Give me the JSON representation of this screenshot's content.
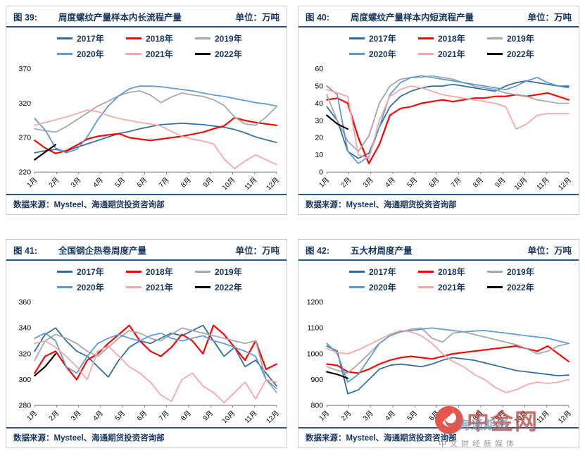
{
  "watermark": {
    "brand": "中金网",
    "overlay": "海通期货",
    "tagline": "中文财经新媒体"
  },
  "chart_data": [
    {
      "type": "line",
      "fig_label": "图 39:",
      "title": "周度螺纹产量样本内长流程产量",
      "unit": "单位：万吨",
      "source": "数据来源：Mysteel、海通期货投资咨询部",
      "xlabel": "",
      "ylabel": "",
      "legend_position": "top",
      "grid": false,
      "ylim": [
        220,
        370
      ],
      "yticks": [
        220,
        270,
        320,
        370
      ],
      "categories": [
        "1月",
        "2月",
        "3月",
        "4月",
        "5月",
        "6月",
        "7月",
        "8月",
        "9月",
        "10月",
        "11月",
        "12月"
      ],
      "series": [
        {
          "name": "2017年",
          "color": "#2E6DA4",
          "width": 1.8,
          "values": [
            248,
            251,
            253,
            250,
            256,
            261,
            266,
            271,
            276,
            279,
            283,
            286,
            289,
            290,
            291,
            290,
            289,
            287,
            285,
            282,
            277,
            271,
            267,
            263
          ]
        },
        {
          "name": "2018年",
          "color": "#FF0000",
          "width": 2.2,
          "values": [
            266,
            255,
            247,
            251,
            259,
            268,
            272,
            274,
            276,
            270,
            268,
            266,
            268,
            270,
            272,
            275,
            278,
            283,
            287,
            299,
            295,
            292,
            290,
            288
          ]
        },
        {
          "name": "2019年",
          "color": "#A6A6A6",
          "width": 1.8,
          "values": [
            283,
            280,
            278,
            286,
            296,
            306,
            316,
            323,
            331,
            336,
            338,
            332,
            321,
            329,
            335,
            332,
            330,
            325,
            317,
            300,
            290,
            288,
            300,
            315
          ]
        },
        {
          "name": "2020年",
          "color": "#5B9BD5",
          "width": 1.8,
          "values": [
            298,
            281,
            255,
            248,
            253,
            271,
            296,
            316,
            331,
            341,
            345,
            345,
            344,
            342,
            340,
            338,
            335,
            332,
            330,
            327,
            324,
            321,
            319,
            316
          ]
        },
        {
          "name": "2021年",
          "color": "#F8A5A5",
          "width": 1.8,
          "values": [
            288,
            292,
            296,
            300,
            305,
            310,
            308,
            302,
            298,
            295,
            292,
            290,
            287,
            279,
            272,
            268,
            265,
            261,
            239,
            225,
            236,
            245,
            238,
            231
          ]
        },
        {
          "name": "2022年",
          "color": "#000000",
          "width": 2.2,
          "values": [
            238,
            249,
            260
          ]
        }
      ]
    },
    {
      "type": "line",
      "fig_label": "图 40:",
      "title": "周度螺纹产量样本内短流程产量",
      "unit": "单位：万吨",
      "source": "数据来源：Mysteel、海通期货投资咨询部",
      "xlabel": "",
      "ylabel": "",
      "legend_position": "top",
      "grid": false,
      "ylim": [
        0,
        60
      ],
      "yticks": [
        0,
        10,
        20,
        30,
        40,
        50,
        60
      ],
      "categories": [
        "1月",
        "2月",
        "3月",
        "4月",
        "5月",
        "6月",
        "7月",
        "8月",
        "9月",
        "10月",
        "11月",
        "12月"
      ],
      "series": [
        {
          "name": "2017年",
          "color": "#2E6DA4",
          "width": 1.8,
          "values": [
            38,
            30,
            12,
            8,
            11,
            26,
            38,
            44,
            47,
            49,
            50,
            50,
            51,
            50,
            49,
            48,
            47,
            50,
            52,
            53,
            52,
            51,
            50,
            50
          ]
        },
        {
          "name": "2018年",
          "color": "#FF0000",
          "width": 2.2,
          "values": [
            42,
            43,
            40,
            20,
            5,
            16,
            33,
            37,
            38,
            40,
            41,
            42,
            41,
            42,
            43,
            43,
            44,
            44,
            45,
            44,
            45,
            46,
            44,
            42
          ]
        },
        {
          "name": "2019年",
          "color": "#A6A6A6",
          "width": 1.8,
          "values": [
            45,
            30,
            18,
            12,
            21,
            40,
            50,
            54,
            55,
            55,
            56,
            55,
            54,
            52,
            50,
            49,
            48,
            46,
            45,
            44,
            42,
            41,
            40,
            40
          ]
        },
        {
          "name": "2020年",
          "color": "#5B9BD5",
          "width": 1.8,
          "values": [
            50,
            45,
            12,
            5,
            9,
            26,
            45,
            52,
            55,
            56,
            55,
            54,
            53,
            52,
            51,
            50,
            49,
            48,
            50,
            53,
            55,
            52,
            50,
            49
          ]
        },
        {
          "name": "2021年",
          "color": "#F8A5A5",
          "width": 1.8,
          "values": [
            48,
            46,
            44,
            10,
            8,
            30,
            44,
            48,
            50,
            49,
            47,
            45,
            44,
            43,
            42,
            41,
            40,
            38,
            25,
            28,
            33,
            34,
            34,
            34
          ]
        },
        {
          "name": "2022年",
          "color": "#000000",
          "width": 2.2,
          "values": [
            33,
            28,
            25
          ]
        }
      ]
    },
    {
      "type": "line",
      "fig_label": "图 41:",
      "title": "全国钢企热卷周度产量",
      "unit": "单位：万吨",
      "source": "数据来源：Mysteel、海通期货投资咨询部",
      "xlabel": "",
      "ylabel": "",
      "legend_position": "top",
      "grid": false,
      "ylim": [
        280,
        360
      ],
      "yticks": [
        280,
        300,
        320,
        340,
        360
      ],
      "categories": [
        "1月",
        "2月",
        "3月",
        "4月",
        "5月",
        "6月",
        "7月",
        "8月",
        "9月",
        "10月",
        "11月",
        "12月"
      ],
      "series": [
        {
          "name": "2017年",
          "color": "#2E6DA4",
          "width": 1.8,
          "values": [
            322,
            335,
            340,
            330,
            322,
            318,
            310,
            302,
            315,
            325,
            330,
            328,
            332,
            336,
            334,
            338,
            342,
            330,
            318,
            325,
            310,
            315,
            305,
            295
          ]
        },
        {
          "name": "2018年",
          "color": "#FF0000",
          "width": 2.2,
          "values": [
            305,
            318,
            322,
            310,
            300,
            315,
            320,
            328,
            335,
            342,
            330,
            322,
            318,
            325,
            335,
            330,
            320,
            342,
            335,
            325,
            315,
            330,
            308,
            312
          ]
        },
        {
          "name": "2019年",
          "color": "#A6A6A6",
          "width": 1.8,
          "values": [
            315,
            330,
            335,
            332,
            328,
            322,
            318,
            325,
            332,
            338,
            336,
            332,
            330,
            335,
            340,
            338,
            336,
            334,
            332,
            330,
            328,
            330,
            300,
            290
          ]
        },
        {
          "name": "2020年",
          "color": "#5B9BD5",
          "width": 1.8,
          "values": [
            332,
            336,
            330,
            310,
            305,
            318,
            328,
            332,
            335,
            332,
            330,
            334,
            336,
            332,
            330,
            332,
            334,
            330,
            328,
            325,
            322,
            318,
            300,
            293
          ]
        },
        {
          "name": "2021年",
          "color": "#F8A5A5",
          "width": 1.8,
          "values": [
            328,
            330,
            325,
            318,
            310,
            300,
            322,
            326,
            318,
            310,
            305,
            298,
            288,
            283,
            300,
            305,
            295,
            290,
            282,
            290,
            298,
            285,
            300,
            298
          ]
        },
        {
          "name": "2022年",
          "color": "#000000",
          "width": 2.2,
          "values": [
            303,
            310,
            320
          ]
        }
      ]
    },
    {
      "type": "line",
      "fig_label": "图 42:",
      "title": "五大材周度产量",
      "unit": "单位：万吨",
      "source": "数据来源：Mysteel、海通期货投资咨询部",
      "xlabel": "",
      "ylabel": "",
      "legend_position": "top",
      "grid": false,
      "ylim": [
        800,
        1200
      ],
      "yticks": [
        800,
        900,
        1000,
        1100,
        1200
      ],
      "categories": [
        "1月",
        "2月",
        "3月",
        "4月",
        "5月",
        "6月",
        "7月",
        "8月",
        "9月",
        "10月",
        "11月",
        "12月"
      ],
      "series": [
        {
          "name": "2017年",
          "color": "#2E6DA4",
          "width": 1.8,
          "values": [
            1030,
            1010,
            845,
            860,
            900,
            940,
            955,
            960,
            955,
            950,
            960,
            975,
            985,
            980,
            975,
            965,
            955,
            945,
            935,
            930,
            925,
            920,
            915,
            918
          ]
        },
        {
          "name": "2018年",
          "color": "#FF0000",
          "width": 2.2,
          "values": [
            960,
            955,
            930,
            925,
            940,
            960,
            975,
            985,
            990,
            985,
            980,
            990,
            1000,
            1005,
            1010,
            1015,
            1020,
            1025,
            1030,
            1020,
            1010,
            1030,
            1000,
            970
          ]
        },
        {
          "name": "2019年",
          "color": "#A6A6A6",
          "width": 1.8,
          "values": [
            950,
            935,
            925,
            960,
            1000,
            1040,
            1070,
            1085,
            1095,
            1100,
            1060,
            1045,
            1080,
            1085,
            1075,
            1065,
            1055,
            1045,
            1035,
            1020,
            1000,
            1010,
            1030,
            1040
          ]
        },
        {
          "name": "2020年",
          "color": "#5B9BD5",
          "width": 1.8,
          "values": [
            1040,
            1000,
            890,
            920,
            980,
            1040,
            1070,
            1085,
            1090,
            1095,
            1100,
            1095,
            1090,
            1085,
            1088,
            1090,
            1085,
            1080,
            1075,
            1070,
            1065,
            1060,
            1050,
            1040
          ]
        },
        {
          "name": "2021年",
          "color": "#F8A5A5",
          "width": 1.8,
          "values": [
            1020,
            1005,
            1000,
            1015,
            1035,
            1055,
            1075,
            1090,
            1085,
            1070,
            1040,
            1000,
            970,
            950,
            920,
            900,
            870,
            850,
            860,
            880,
            890,
            885,
            890,
            900
          ]
        },
        {
          "name": "2022年",
          "color": "#000000",
          "width": 2.2,
          "values": [
            930,
            920,
            905
          ]
        }
      ]
    }
  ]
}
